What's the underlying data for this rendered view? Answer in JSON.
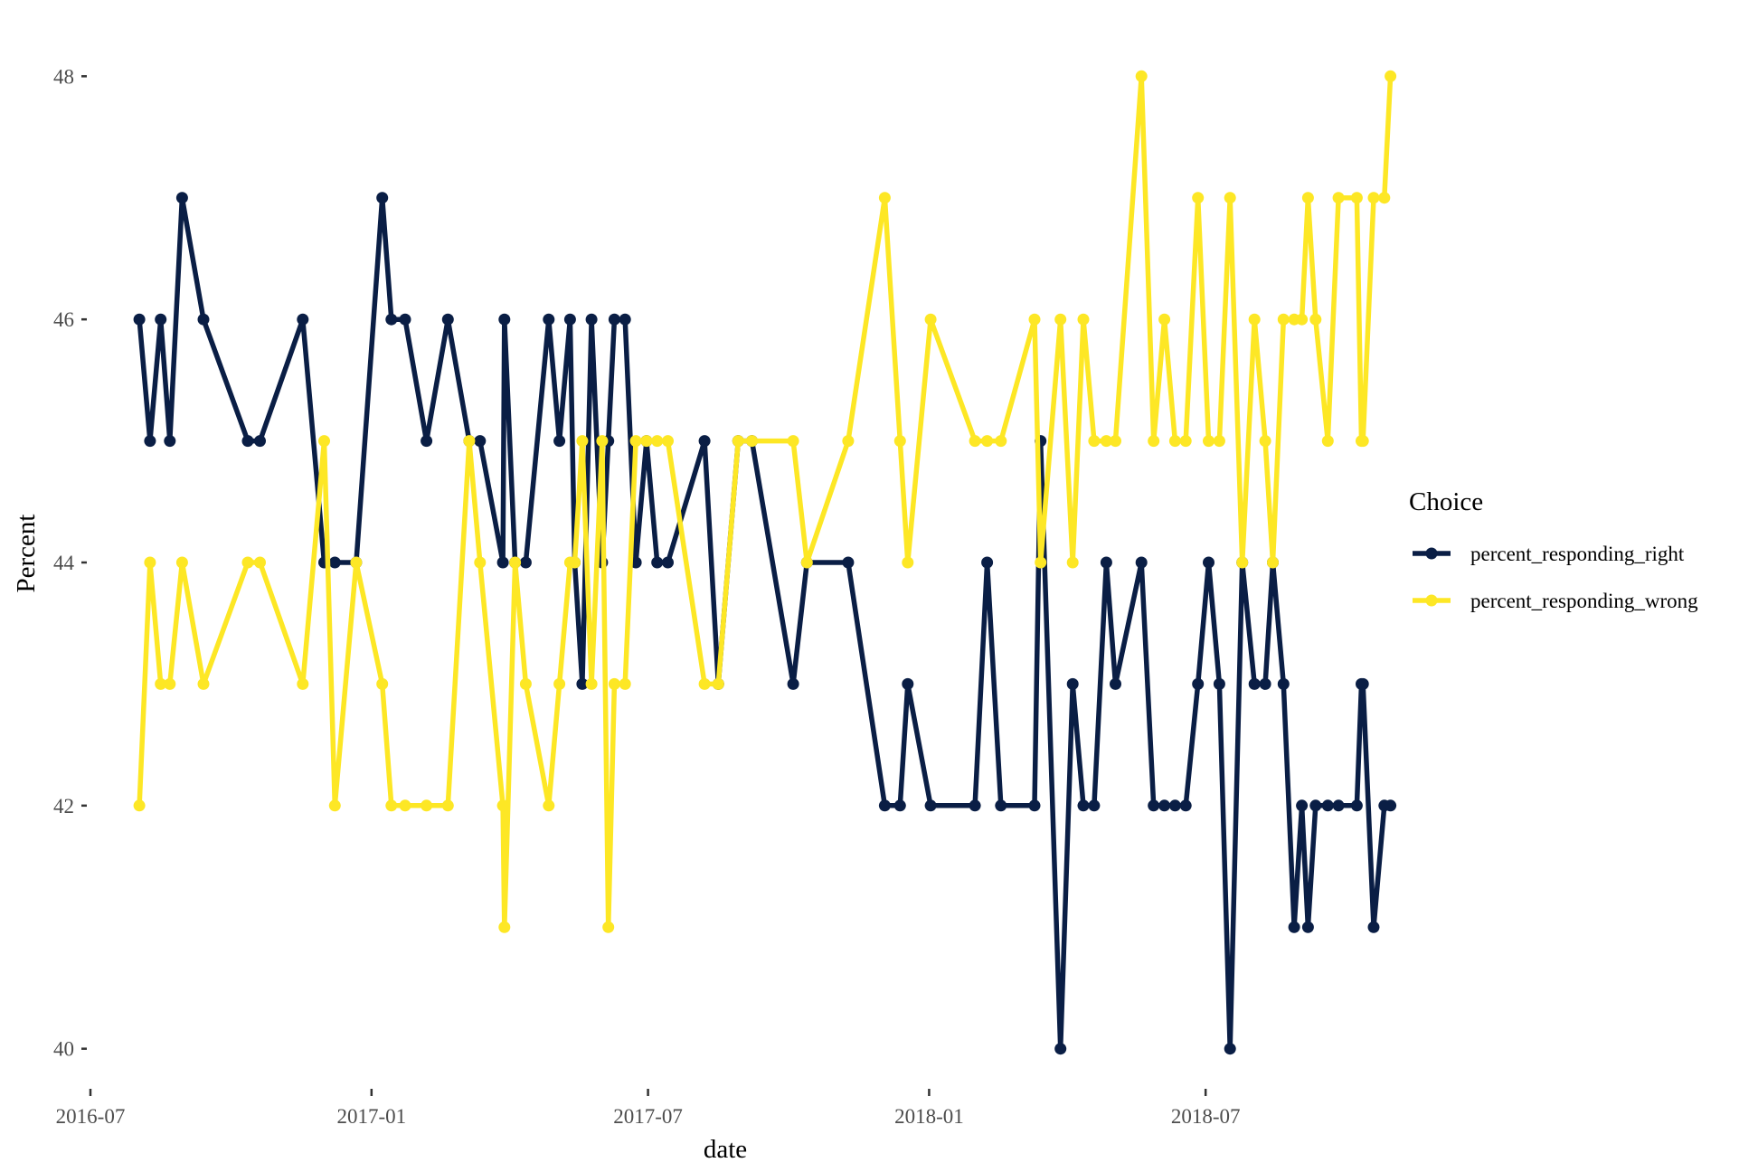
{
  "chart_data": {
    "type": "line",
    "xlabel": "date",
    "ylabel": "Percent",
    "x_ticks": [
      "2016-07",
      "2017-01",
      "2017-07",
      "2018-01",
      "2018-07"
    ],
    "y_ticks": [
      "40",
      "42",
      "44",
      "46",
      "48"
    ],
    "xlim": [
      "2016-07-01",
      "2018-09-20"
    ],
    "ylim": [
      39.7,
      48.3
    ],
    "grid": false,
    "legend": {
      "title": "Choice",
      "placement": "right"
    },
    "series": [
      {
        "name": "percent_responding_right",
        "color": "#0a1e45",
        "points": [
          [
            "2016-08-02",
            46
          ],
          [
            "2016-08-09",
            45
          ],
          [
            "2016-08-16",
            46
          ],
          [
            "2016-08-22",
            45
          ],
          [
            "2016-08-30",
            47
          ],
          [
            "2016-09-13",
            46
          ],
          [
            "2016-10-12",
            45
          ],
          [
            "2016-10-20",
            45
          ],
          [
            "2016-11-17",
            46
          ],
          [
            "2016-12-01",
            44
          ],
          [
            "2016-12-08",
            44
          ],
          [
            "2016-12-22",
            44
          ],
          [
            "2017-01-08",
            47
          ],
          [
            "2017-01-14",
            46
          ],
          [
            "2017-01-23",
            46
          ],
          [
            "2017-02-06",
            45
          ],
          [
            "2017-02-20",
            46
          ],
          [
            "2017-03-06",
            45
          ],
          [
            "2017-03-13",
            45
          ],
          [
            "2017-03-28",
            44
          ],
          [
            "2017-03-29",
            46
          ],
          [
            "2017-04-05",
            44
          ],
          [
            "2017-04-12",
            44
          ],
          [
            "2017-04-27",
            46
          ],
          [
            "2017-05-04",
            45
          ],
          [
            "2017-05-11",
            46
          ],
          [
            "2017-05-14",
            44
          ],
          [
            "2017-05-19",
            43
          ],
          [
            "2017-05-25",
            46
          ],
          [
            "2017-06-01",
            44
          ],
          [
            "2017-06-05",
            45
          ],
          [
            "2017-06-09",
            46
          ],
          [
            "2017-06-16",
            46
          ],
          [
            "2017-06-23",
            44
          ],
          [
            "2017-06-30",
            45
          ],
          [
            "2017-07-07",
            44
          ],
          [
            "2017-07-14",
            44
          ],
          [
            "2017-08-07",
            45
          ],
          [
            "2017-08-16",
            43
          ],
          [
            "2017-08-29",
            45
          ],
          [
            "2017-09-07",
            45
          ],
          [
            "2017-10-04",
            43
          ],
          [
            "2017-10-13",
            44
          ],
          [
            "2017-11-09",
            44
          ],
          [
            "2017-12-03",
            42
          ],
          [
            "2017-12-13",
            42
          ],
          [
            "2017-12-18",
            43
          ],
          [
            "2018-01-02",
            42
          ],
          [
            "2018-01-31",
            42
          ],
          [
            "2018-02-08",
            44
          ],
          [
            "2018-02-17",
            42
          ],
          [
            "2018-03-11",
            42
          ],
          [
            "2018-03-15",
            45
          ],
          [
            "2018-03-28",
            40
          ],
          [
            "2018-04-05",
            43
          ],
          [
            "2018-04-12",
            42
          ],
          [
            "2018-04-19",
            42
          ],
          [
            "2018-04-27",
            44
          ],
          [
            "2018-05-03",
            43
          ],
          [
            "2018-05-20",
            44
          ],
          [
            "2018-05-28",
            42
          ],
          [
            "2018-06-04",
            42
          ],
          [
            "2018-06-11",
            42
          ],
          [
            "2018-06-18",
            42
          ],
          [
            "2018-06-26",
            43
          ],
          [
            "2018-07-03",
            44
          ],
          [
            "2018-07-10",
            43
          ],
          [
            "2018-07-17",
            40
          ],
          [
            "2018-07-25",
            44
          ],
          [
            "2018-08-02",
            43
          ],
          [
            "2018-08-09",
            43
          ],
          [
            "2018-08-14",
            44
          ],
          [
            "2018-08-21",
            43
          ],
          [
            "2018-08-28",
            41
          ],
          [
            "2018-09-02",
            42
          ],
          [
            "2018-09-06",
            41
          ],
          [
            "2018-09-11",
            42
          ],
          [
            "2018-09-19",
            42
          ],
          [
            "2018-09-26",
            42
          ],
          [
            "2018-10-08",
            42
          ],
          [
            "2018-10-11",
            43
          ],
          [
            "2018-10-12",
            43
          ],
          [
            "2018-10-19",
            41
          ],
          [
            "2018-10-26",
            42
          ],
          [
            "2018-10-30",
            42
          ]
        ]
      },
      {
        "name": "percent_responding_wrong",
        "color": "#fde725",
        "points": [
          [
            "2016-08-02",
            42
          ],
          [
            "2016-08-09",
            44
          ],
          [
            "2016-08-16",
            43
          ],
          [
            "2016-08-22",
            43
          ],
          [
            "2016-08-30",
            44
          ],
          [
            "2016-09-13",
            43
          ],
          [
            "2016-10-12",
            44
          ],
          [
            "2016-10-20",
            44
          ],
          [
            "2016-11-17",
            43
          ],
          [
            "2016-12-01",
            45
          ],
          [
            "2016-12-08",
            42
          ],
          [
            "2016-12-22",
            44
          ],
          [
            "2017-01-08",
            43
          ],
          [
            "2017-01-14",
            42
          ],
          [
            "2017-01-23",
            42
          ],
          [
            "2017-02-06",
            42
          ],
          [
            "2017-02-20",
            42
          ],
          [
            "2017-03-06",
            45
          ],
          [
            "2017-03-13",
            44
          ],
          [
            "2017-03-28",
            42
          ],
          [
            "2017-03-29",
            41
          ],
          [
            "2017-04-05",
            44
          ],
          [
            "2017-04-12",
            43
          ],
          [
            "2017-04-27",
            42
          ],
          [
            "2017-05-04",
            43
          ],
          [
            "2017-05-11",
            44
          ],
          [
            "2017-05-14",
            44
          ],
          [
            "2017-05-19",
            45
          ],
          [
            "2017-05-25",
            43
          ],
          [
            "2017-06-01",
            45
          ],
          [
            "2017-06-05",
            41
          ],
          [
            "2017-06-09",
            43
          ],
          [
            "2017-06-16",
            43
          ],
          [
            "2017-06-23",
            45
          ],
          [
            "2017-06-30",
            45
          ],
          [
            "2017-07-07",
            45
          ],
          [
            "2017-07-14",
            45
          ],
          [
            "2017-08-07",
            43
          ],
          [
            "2017-08-16",
            43
          ],
          [
            "2017-08-29",
            45
          ],
          [
            "2017-09-07",
            45
          ],
          [
            "2017-10-04",
            45
          ],
          [
            "2017-10-13",
            44
          ],
          [
            "2017-11-09",
            45
          ],
          [
            "2017-12-03",
            47
          ],
          [
            "2017-12-13",
            45
          ],
          [
            "2017-12-18",
            44
          ],
          [
            "2018-01-02",
            46
          ],
          [
            "2018-01-31",
            45
          ],
          [
            "2018-02-08",
            45
          ],
          [
            "2018-02-17",
            45
          ],
          [
            "2018-03-11",
            46
          ],
          [
            "2018-03-15",
            44
          ],
          [
            "2018-03-28",
            46
          ],
          [
            "2018-04-05",
            44
          ],
          [
            "2018-04-12",
            46
          ],
          [
            "2018-04-19",
            45
          ],
          [
            "2018-04-27",
            45
          ],
          [
            "2018-05-03",
            45
          ],
          [
            "2018-05-20",
            48
          ],
          [
            "2018-05-28",
            45
          ],
          [
            "2018-06-04",
            46
          ],
          [
            "2018-06-11",
            45
          ],
          [
            "2018-06-18",
            45
          ],
          [
            "2018-06-26",
            47
          ],
          [
            "2018-07-03",
            45
          ],
          [
            "2018-07-10",
            45
          ],
          [
            "2018-07-17",
            47
          ],
          [
            "2018-07-25",
            44
          ],
          [
            "2018-08-02",
            46
          ],
          [
            "2018-08-09",
            45
          ],
          [
            "2018-08-14",
            44
          ],
          [
            "2018-08-21",
            46
          ],
          [
            "2018-08-28",
            46
          ],
          [
            "2018-09-02",
            46
          ],
          [
            "2018-09-06",
            47
          ],
          [
            "2018-09-11",
            46
          ],
          [
            "2018-09-19",
            45
          ],
          [
            "2018-09-26",
            47
          ],
          [
            "2018-10-08",
            47
          ],
          [
            "2018-10-11",
            45
          ],
          [
            "2018-10-12",
            45
          ],
          [
            "2018-10-19",
            47
          ],
          [
            "2018-10-26",
            47
          ],
          [
            "2018-10-30",
            48
          ]
        ]
      }
    ]
  }
}
